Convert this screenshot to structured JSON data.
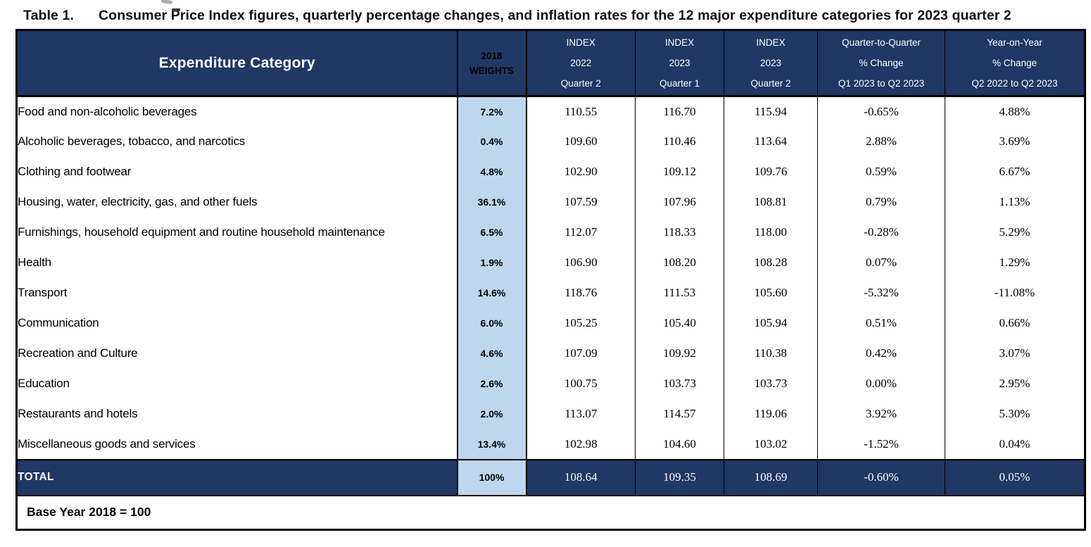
{
  "title": {
    "label": "Table 1.",
    "text": "Consumer Price Index figures, quarterly percentage changes, and inflation rates for the 12 major expenditure categories for 2023 quarter 2"
  },
  "colors": {
    "header_navy": "#1F3864",
    "weights_blue": "#BDD7EE",
    "border_black": "#000000",
    "header_text": "#FFFFFF"
  },
  "table": {
    "header": {
      "category": "Expenditure Category",
      "weights": {
        "line1": "2018",
        "line2": "WEIGHTS"
      },
      "columns": [
        {
          "line1": "INDEX",
          "line2": "2022",
          "line3": "Quarter 2"
        },
        {
          "line1": "INDEX",
          "line2": "2023",
          "line3": "Quarter 1"
        },
        {
          "line1": "INDEX",
          "line2": "2023",
          "line3": "Quarter 2"
        },
        {
          "line1": "Quarter-to-Quarter",
          "line2": "% Change",
          "line3": "Q1 2023 to Q2 2023"
        },
        {
          "line1": "Year-on-Year",
          "line2": "% Change",
          "line3": "Q2 2022 to Q2 2023"
        }
      ]
    },
    "rows": [
      {
        "category": "Food and non-alcoholic beverages",
        "weight": "7.2%",
        "index_2022_q2": "110.55",
        "index_2023_q1": "116.70",
        "index_2023_q2": "115.94",
        "qtq_change": "-0.65%",
        "yoy_change": "4.88%"
      },
      {
        "category": "Alcoholic beverages, tobacco, and narcotics",
        "weight": "0.4%",
        "index_2022_q2": "109.60",
        "index_2023_q1": "110.46",
        "index_2023_q2": "113.64",
        "qtq_change": "2.88%",
        "yoy_change": "3.69%"
      },
      {
        "category": "Clothing and footwear",
        "weight": "4.8%",
        "index_2022_q2": "102.90",
        "index_2023_q1": "109.12",
        "index_2023_q2": "109.76",
        "qtq_change": "0.59%",
        "yoy_change": "6.67%"
      },
      {
        "category": "Housing, water, electricity, gas, and other fuels",
        "weight": "36.1%",
        "index_2022_q2": "107.59",
        "index_2023_q1": "107.96",
        "index_2023_q2": "108.81",
        "qtq_change": "0.79%",
        "yoy_change": "1.13%"
      },
      {
        "category": "Furnishings, household equipment and routine household maintenance",
        "weight": "6.5%",
        "index_2022_q2": "112.07",
        "index_2023_q1": "118.33",
        "index_2023_q2": "118.00",
        "qtq_change": "-0.28%",
        "yoy_change": "5.29%"
      },
      {
        "category": "Health",
        "weight": "1.9%",
        "index_2022_q2": "106.90",
        "index_2023_q1": "108.20",
        "index_2023_q2": "108.28",
        "qtq_change": "0.07%",
        "yoy_change": "1.29%"
      },
      {
        "category": "Transport",
        "weight": "14.6%",
        "index_2022_q2": "118.76",
        "index_2023_q1": "111.53",
        "index_2023_q2": "105.60",
        "qtq_change": "-5.32%",
        "yoy_change": "-11.08%"
      },
      {
        "category": "Communication",
        "weight": "6.0%",
        "index_2022_q2": "105.25",
        "index_2023_q1": "105.40",
        "index_2023_q2": "105.94",
        "qtq_change": "0.51%",
        "yoy_change": "0.66%"
      },
      {
        "category": "Recreation and Culture",
        "weight": "4.6%",
        "index_2022_q2": "107.09",
        "index_2023_q1": "109.92",
        "index_2023_q2": "110.38",
        "qtq_change": "0.42%",
        "yoy_change": "3.07%"
      },
      {
        "category": "Education",
        "weight": "2.6%",
        "index_2022_q2": "100.75",
        "index_2023_q1": "103.73",
        "index_2023_q2": "103.73",
        "qtq_change": "0.00%",
        "yoy_change": "2.95%"
      },
      {
        "category": "Restaurants and hotels",
        "weight": "2.0%",
        "index_2022_q2": "113.07",
        "index_2023_q1": "114.57",
        "index_2023_q2": "119.06",
        "qtq_change": "3.92%",
        "yoy_change": "5.30%"
      },
      {
        "category": "Miscellaneous goods and services",
        "weight": "13.4%",
        "index_2022_q2": "102.98",
        "index_2023_q1": "104.60",
        "index_2023_q2": "103.02",
        "qtq_change": "-1.52%",
        "yoy_change": "0.04%"
      }
    ],
    "total": {
      "category": "TOTAL",
      "weight": "100%",
      "index_2022_q2": "108.64",
      "index_2023_q1": "109.35",
      "index_2023_q2": "108.69",
      "qtq_change": "-0.60%",
      "yoy_change": "0.05%"
    },
    "footnote": "Base Year 2018 = 100"
  }
}
